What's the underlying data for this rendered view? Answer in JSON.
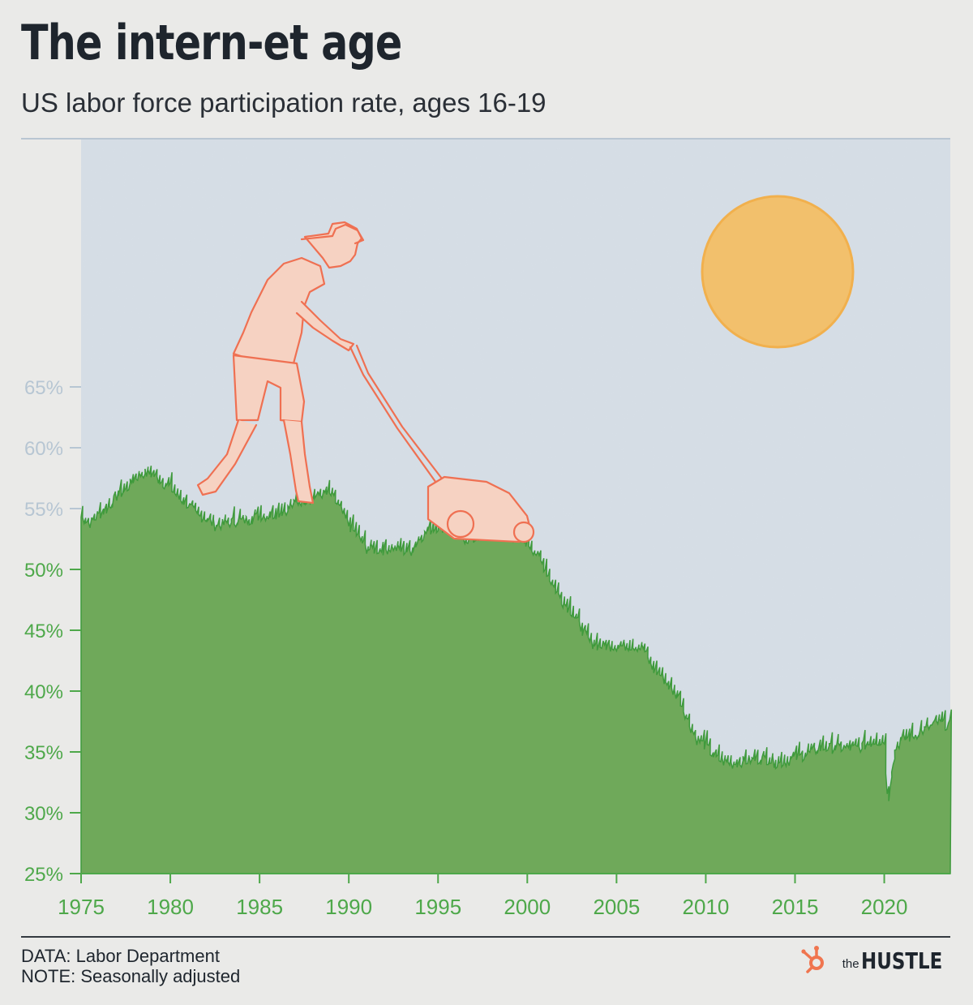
{
  "title": "The intern-et age",
  "subtitle": "US labor force participation rate, ages 16-19",
  "footer": {
    "data_source": "DATA: Labor Department",
    "note": "NOTE: Seasonally adjusted"
  },
  "brand": {
    "the": "the",
    "name": "HUSTLE",
    "icon": "hubspot-sprocket-icon"
  },
  "colors": {
    "background": "#eaeae8",
    "sky": "#d6dee6",
    "grass": "#6fa95a",
    "grass_edge": "#3f9a3c",
    "axis_green": "#4ea84a",
    "axis_faded": "#b7c6d3",
    "sun": "#f2c06c",
    "illustration": "#ef7052"
  },
  "chart_data": {
    "type": "area",
    "xlabel": "",
    "ylabel": "",
    "xlim": [
      1975,
      2023.7
    ],
    "ylim": [
      25,
      65
    ],
    "x_ticks": [
      "1975",
      "1980",
      "1985",
      "1990",
      "1995",
      "2000",
      "2005",
      "2010",
      "2015",
      "2020"
    ],
    "y_ticks": [
      "25%",
      "30%",
      "35%",
      "40%",
      "45%",
      "50%",
      "55%",
      "60%",
      "65%"
    ],
    "grid": false,
    "series": [
      {
        "values_x": [
          1975.0,
          1975.5,
          1976.0,
          1976.5,
          1977.0,
          1977.5,
          1978.0,
          1978.5,
          1979.0,
          1979.5,
          1980.0,
          1980.5,
          1981.0,
          1981.5,
          1982.0,
          1982.5,
          1983.0,
          1983.5,
          1984.0,
          1984.5,
          1985.0,
          1985.5,
          1986.0,
          1986.5,
          1987.0,
          1987.5,
          1988.0,
          1988.5,
          1989.0,
          1989.5,
          1990.0,
          1990.5,
          1991.0,
          1991.5,
          1992.0,
          1992.5,
          1993.0,
          1993.5,
          1994.0,
          1994.5,
          1995.0,
          1995.5,
          1996.0,
          1996.5,
          1997.0,
          1997.5,
          1998.0,
          1998.5,
          1999.0,
          1999.5,
          2000.0,
          2000.5,
          2001.0,
          2001.5,
          2002.0,
          2002.5,
          2003.0,
          2003.5,
          2004.0,
          2004.5,
          2005.0,
          2005.5,
          2006.0,
          2006.5,
          2007.0,
          2007.5,
          2008.0,
          2008.5,
          2009.0,
          2009.5,
          2010.0,
          2010.5,
          2011.0,
          2011.5,
          2012.0,
          2012.5,
          2013.0,
          2013.5,
          2014.0,
          2014.5,
          2015.0,
          2015.5,
          2016.0,
          2016.5,
          2017.0,
          2017.5,
          2018.0,
          2018.5,
          2019.0,
          2019.5,
          2020.0,
          2020.2,
          2020.4,
          2020.6,
          2021.0,
          2021.5,
          2022.0,
          2022.5,
          2023.0,
          2023.5
        ],
        "values": [
          54.3,
          53.8,
          54.5,
          55.0,
          56.0,
          56.5,
          57.5,
          57.9,
          57.8,
          57.2,
          56.7,
          55.8,
          55.3,
          54.4,
          54.2,
          53.6,
          53.7,
          53.9,
          54.0,
          54.1,
          54.4,
          54.4,
          54.6,
          54.9,
          55.4,
          55.7,
          55.9,
          56.2,
          56.1,
          55.0,
          53.6,
          52.7,
          51.7,
          51.6,
          51.6,
          51.8,
          51.5,
          51.5,
          52.6,
          53.2,
          53.5,
          53.4,
          52.8,
          52.5,
          52.4,
          52.9,
          52.9,
          53.0,
          52.8,
          52.5,
          52.2,
          51.3,
          50.0,
          48.5,
          47.3,
          46.5,
          45.2,
          44.0,
          43.7,
          43.7,
          43.7,
          43.7,
          43.7,
          43.5,
          41.8,
          41.3,
          40.2,
          39.5,
          37.5,
          36.0,
          35.5,
          34.5,
          34.2,
          34.0,
          34.2,
          34.3,
          34.4,
          34.4,
          34.0,
          34.2,
          34.5,
          34.7,
          35.0,
          35.3,
          35.3,
          35.3,
          35.3,
          35.3,
          35.6,
          35.9,
          35.8,
          30.5,
          33.5,
          35.2,
          36.0,
          36.2,
          36.6,
          37.0,
          37.4,
          37.2
        ]
      }
    ]
  }
}
